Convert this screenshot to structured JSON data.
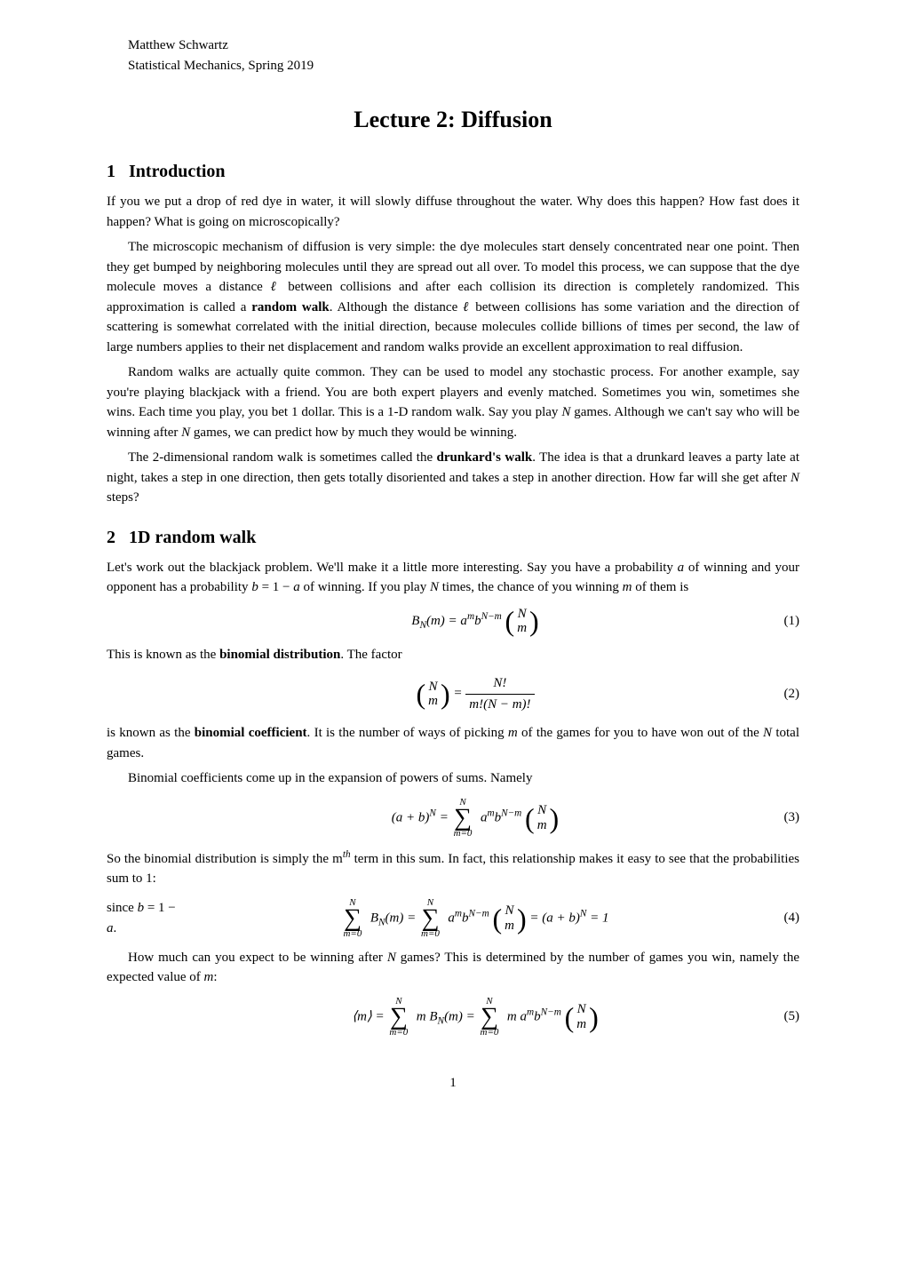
{
  "author": "Matthew Schwartz",
  "course": "Statistical Mechanics, Spring 2019",
  "title": "Lecture 2: Diffusion",
  "sections": {
    "s1": {
      "number": "1",
      "heading": "Introduction"
    },
    "s2": {
      "number": "2",
      "heading": "1D random walk"
    }
  },
  "paragraphs": {
    "p1": "If you we put a drop of red dye in water, it will slowly diffuse throughout the water. Why does this happen? How fast does it happen? What is going on microscopically?",
    "p2": "The microscopic mechanism of diffusion is very simple: the dye molecules start densely concentrated near one point. Then they get bumped by neighboring molecules until they are spread out all over. To model this process, we can suppose that the dye molecule moves a distance ℓ between collisions and after each collision its direction is completely randomized. This approximation is called a random walk. Although the distance ℓ between collisions has some variation and the direction of scattering is somewhat correlated with the initial direction, because molecules collide billions of times per second, the law of large numbers applies to their net displacement and random walks provide an excellent approximation to real diffusion.",
    "p3": "Random walks are actually quite common. They can be used to model any stochastic process. For another example, say you're playing blackjack with a friend. You are both expert players and evenly matched. Sometimes you win, sometimes she wins. Each time you play, you bet 1 dollar. This is a 1-D random walk. Say you play N games. Although we can't say who will be winning after N games, we can predict how by much they would be winning.",
    "p4": "The 2-dimensional random walk is sometimes called the drunkard's walk. The idea is that a drunkard leaves a party late at night, takes a step in one direction, then gets totally disoriented and takes a step in another direction. How far will she get after N steps?",
    "p5": "Let's work out the blackjack problem. We'll make it a little more interesting. Say you have a probability a of winning and your opponent has a probability b = 1 − a of winning. If you play N times, the chance of you winning m of them is",
    "p6": "This is known as the binomial distribution. The factor",
    "p7": "is known as the binomial coefficient. It is the number of ways of picking m of the games for you to have won out of the N total games.",
    "p8": "Binomial coefficients come up in the expansion of powers of sums. Namely",
    "p9_a": "So the binomial distribution is simply the m",
    "p9_b": " term in this sum. In fact, this relationship makes it easy to see that the probabilities sum to 1:",
    "p10": "since b = 1 − a.",
    "p11": "How much can you expect to be winning after N games? This is determined by the number of games you win, namely the expected value of m:"
  },
  "equations": {
    "eq1": {
      "number": "(1)"
    },
    "eq2": {
      "number": "(2)"
    },
    "eq3": {
      "number": "(3)"
    },
    "eq4": {
      "number": "(4)"
    },
    "eq5": {
      "number": "(5)"
    }
  },
  "page_number": "1",
  "typography": {
    "body_fontsize_pt": 11,
    "title_fontsize_pt": 18,
    "section_fontsize_pt": 14,
    "text_color": "#000000",
    "background_color": "#ffffff"
  }
}
